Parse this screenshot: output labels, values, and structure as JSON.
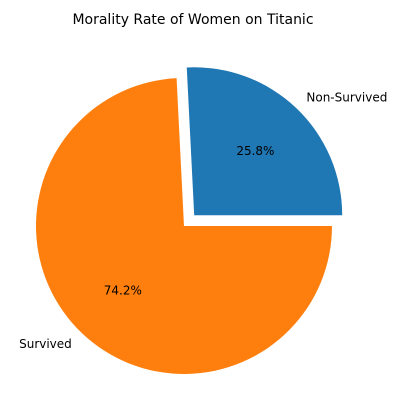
{
  "chart_data": {
    "type": "pie",
    "title": "Morality Rate of Women on Titanic",
    "slices": [
      {
        "label": "Non-Survived",
        "value": 25.8,
        "pct_label": "25.8%",
        "color": "#1f77b4",
        "explode": true
      },
      {
        "label": "Survived",
        "value": 74.2,
        "pct_label": "74.2%",
        "color": "#ff7f0e",
        "explode": false
      }
    ]
  }
}
